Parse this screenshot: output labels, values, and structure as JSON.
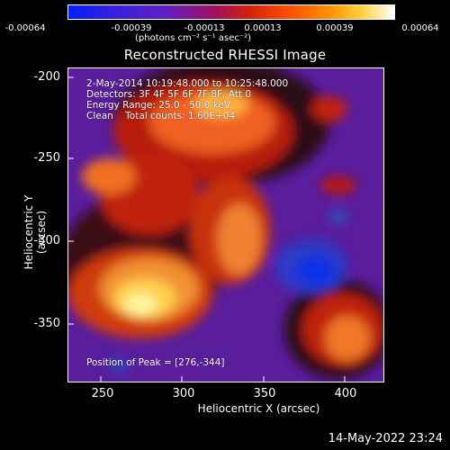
{
  "colorbar": {
    "ticks": [
      "-0.00064",
      "-0.00039",
      "-0.00013",
      "0.00013",
      "0.00039",
      "0.00064"
    ],
    "units": "(photons cm⁻² s⁻¹ asec⁻²)"
  },
  "title": "Reconstructed RHESSI Image",
  "annotations": {
    "time_range": "2-May-2014 10:19:48.000 to 10:25:48.000",
    "detectors": "Detectors: 3F 4F 5F 6F 7F 8F, Att 0",
    "energy": "Energy Range: 25.0 - 50.0 keV",
    "clean": "Clean    Total counts: 1.60E+04",
    "peak": "Position of Peak = [276,-344]"
  },
  "axes": {
    "xlabel": "Heliocentric X (arcsec)",
    "ylabel": "Heliocentric Y (arcsec)",
    "xticks": [
      "250",
      "300",
      "350",
      "400"
    ],
    "yticks": [
      "-200",
      "-250",
      "-300",
      "-350"
    ]
  },
  "footer": {
    "timestamp": "14-May-2022 23:24"
  }
}
